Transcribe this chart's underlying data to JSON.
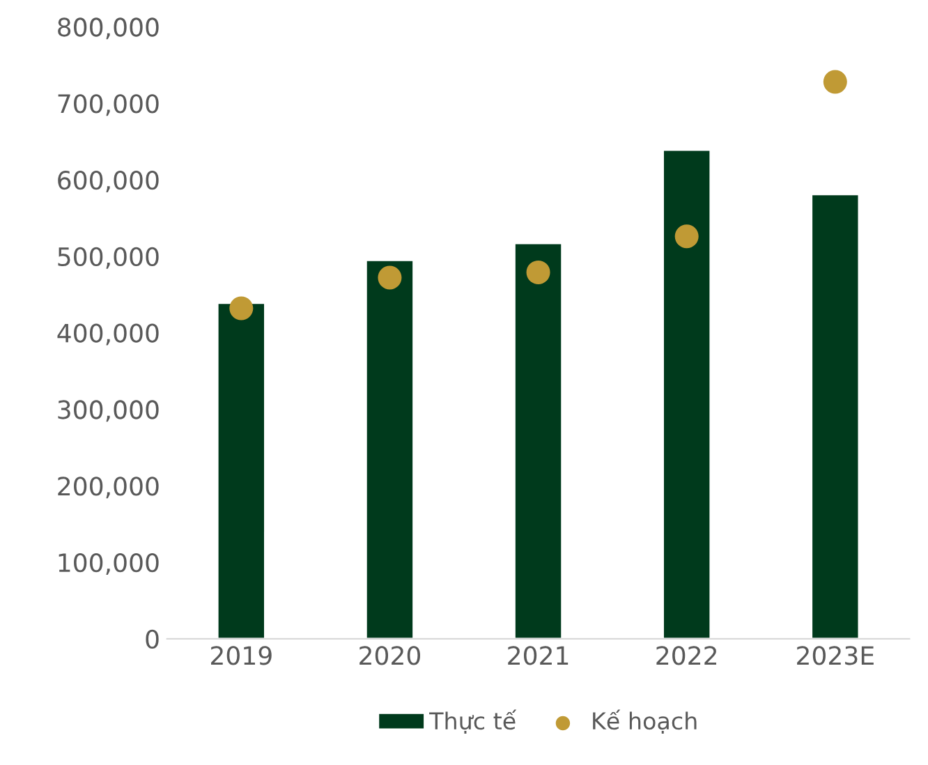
{
  "chart_data": {
    "type": "bar",
    "categories": [
      "2019",
      "2020",
      "2021",
      "2022",
      "2023E"
    ],
    "series": [
      {
        "name": "Thực tế",
        "color": "#003a1c",
        "values": [
          439000,
          495000,
          517000,
          639000,
          581000
        ]
      },
      {
        "name": "Kế hoạch",
        "type": "scatter",
        "color": "#c09a35",
        "values": [
          432000,
          472000,
          479000,
          526000,
          728000
        ]
      }
    ],
    "ylim": [
      0,
      800000
    ],
    "yticks": [
      {
        "value": 0,
        "label": "0"
      },
      {
        "value": 100000,
        "label": "100,000"
      },
      {
        "value": 200000,
        "label": "200,000"
      },
      {
        "value": 300000,
        "label": "300,000"
      },
      {
        "value": 400000,
        "label": "400,000"
      },
      {
        "value": 500000,
        "label": "500,000"
      },
      {
        "value": 600000,
        "label": "600,000"
      },
      {
        "value": 700000,
        "label": "700,000"
      },
      {
        "value": 800000,
        "label": "800,000"
      }
    ],
    "grid": false,
    "legend": "bottom",
    "marker": "circle"
  }
}
